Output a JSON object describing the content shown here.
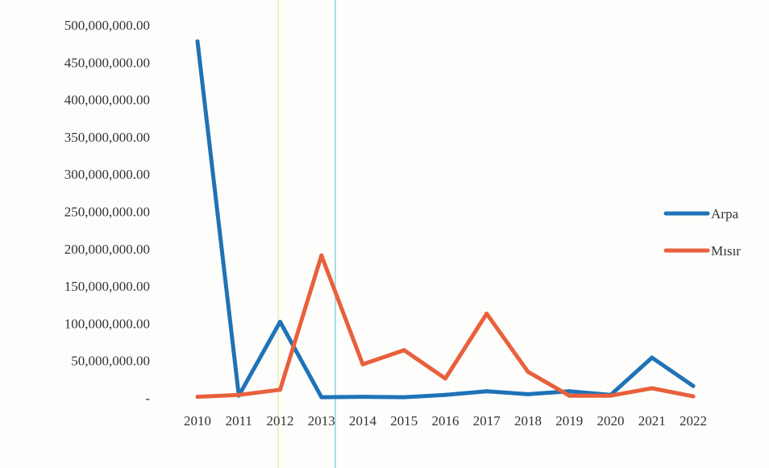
{
  "chart_data": {
    "type": "line",
    "title": "",
    "xlabel": "",
    "ylabel": "",
    "x": [
      "2010",
      "2011",
      "2012",
      "2013",
      "2014",
      "2015",
      "2016",
      "2017",
      "2018",
      "2019",
      "2020",
      "2021",
      "2022"
    ],
    "yticks": [
      {
        "value": 0,
        "label": "-"
      },
      {
        "value": 50000000,
        "label": "50,000,000.00"
      },
      {
        "value": 100000000,
        "label": "100,000,000.00"
      },
      {
        "value": 150000000,
        "label": "150,000,000.00"
      },
      {
        "value": 200000000,
        "label": "200,000,000.00"
      },
      {
        "value": 250000000,
        "label": "250,000,000.00"
      },
      {
        "value": 300000000,
        "label": "300,000,000.00"
      },
      {
        "value": 350000000,
        "label": "350,000,000.00"
      },
      {
        "value": 400000000,
        "label": "400,000,000.00"
      },
      {
        "value": 450000000,
        "label": "450,000,000.00"
      },
      {
        "value": 500000000,
        "label": "500,000,000.00"
      }
    ],
    "ylim": [
      0,
      500000000
    ],
    "grid": false,
    "legend_position": "right",
    "series": [
      {
        "name": "Arpa",
        "color": "#1f73b7",
        "values": [
          478000000,
          3000000,
          102000000,
          1000000,
          1500000,
          1000000,
          4000000,
          9000000,
          5000000,
          9000000,
          4000000,
          54000000,
          16000000
        ]
      },
      {
        "name": "Mısır",
        "color": "#e8603c",
        "values": [
          1500000,
          4000000,
          11000000,
          191000000,
          45000000,
          64000000,
          26000000,
          113000000,
          35000000,
          3000000,
          3000000,
          13000000,
          2000000
        ]
      }
    ]
  }
}
